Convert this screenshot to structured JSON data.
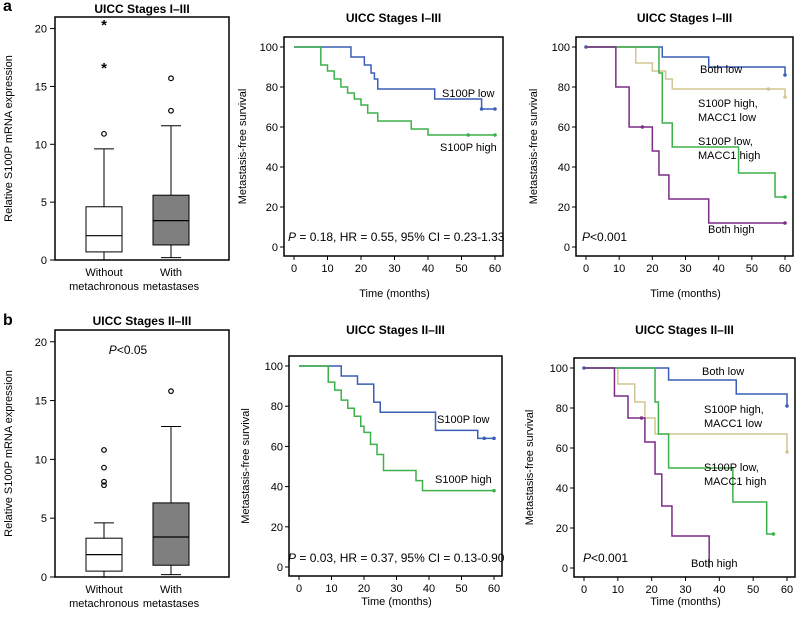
{
  "panel_labels": {
    "a": "a",
    "b": "b"
  },
  "chart_data": [
    {
      "id": "a1",
      "type": "box",
      "title": "UICC Stages I–III",
      "ylabel": "Relative S100P mRNA expression",
      "ylim": [
        0,
        21
      ],
      "yticks": [
        0,
        5,
        10,
        15,
        20
      ],
      "annotation": "",
      "groups": [
        {
          "label": [
            "Without",
            "metachronous"
          ],
          "fill": "#ffffff",
          "min": 0,
          "q1": 0.7,
          "median": 2.1,
          "q3": 4.6,
          "max": 9.6,
          "outliers": [
            {
              "value": 10.9,
              "marker": "circle"
            },
            {
              "value": 16.7,
              "marker": "star"
            },
            {
              "value": 20.4,
              "marker": "star"
            }
          ]
        },
        {
          "label": [
            "With",
            "metastases"
          ],
          "fill": "#7f7f7f",
          "min": 0.2,
          "q1": 1.3,
          "median": 3.4,
          "q3": 5.6,
          "max": 11.6,
          "outliers": [
            {
              "value": 12.9,
              "marker": "circle"
            },
            {
              "value": 15.7,
              "marker": "circle"
            }
          ]
        }
      ]
    },
    {
      "id": "a2",
      "type": "line",
      "title": "UICC Stages I–III",
      "xlabel": "Time (months)",
      "ylabel": "Metastasis-free survival",
      "xlim": [
        0,
        60
      ],
      "ylim": [
        0,
        100
      ],
      "xticks": [
        0,
        10,
        20,
        30,
        40,
        50,
        60
      ],
      "yticks": [
        0,
        20,
        40,
        60,
        80,
        100
      ],
      "stats_text": {
        "p": "P",
        "rest": " = 0.18, HR = 0.55, 95% CI = 0.23-1.33"
      },
      "series": [
        {
          "name": "S100P low",
          "label_lines": [
            "S100P low"
          ],
          "color": "#3a5fb6",
          "x": [
            0,
            6,
            17,
            21,
            23,
            24,
            25,
            40,
            42,
            56,
            60
          ],
          "y": [
            100,
            100,
            95,
            91,
            87,
            84,
            79,
            79,
            74,
            69,
            69
          ],
          "censor_x": [
            56,
            60
          ]
        },
        {
          "name": "S100P high",
          "label_lines": [
            "S100P high"
          ],
          "color": "#3db14a",
          "x": [
            0,
            7,
            8,
            10,
            12,
            14,
            16,
            18,
            20,
            22,
            25,
            35,
            40,
            60
          ],
          "y": [
            100,
            100,
            91,
            88,
            84,
            80,
            77,
            74,
            71,
            67,
            63,
            59,
            56,
            56
          ],
          "censor_x": [
            52,
            60
          ]
        }
      ]
    },
    {
      "id": "a3",
      "type": "line",
      "title": "UICC Stages I–III",
      "xlabel": "Time (months)",
      "ylabel": "Metastasis-free survival",
      "xlim": [
        0,
        60
      ],
      "ylim": [
        0,
        100
      ],
      "xticks": [
        0,
        10,
        20,
        30,
        40,
        50,
        60
      ],
      "yticks": [
        0,
        20,
        40,
        60,
        80,
        100
      ],
      "stats_text": {
        "p": "P",
        "rest": "<0.001"
      },
      "series": [
        {
          "name": "Both low",
          "label_lines": [
            "Both low"
          ],
          "color": "#3a5fb6",
          "x": [
            0,
            13,
            23,
            37,
            60
          ],
          "y": [
            100,
            100,
            95,
            90,
            86
          ],
          "censor_x": [
            0,
            60
          ]
        },
        {
          "name": "S100P high, MACC1 low",
          "label_lines": [
            "S100P high,",
            "MACC1 low"
          ],
          "color": "#d2c592",
          "x": [
            0,
            8,
            15,
            20,
            24,
            26,
            60
          ],
          "y": [
            100,
            100,
            92,
            88,
            84,
            79,
            75
          ],
          "censor_x": [
            55,
            60
          ]
        },
        {
          "name": "S100P low, MACC1 high",
          "label_lines": [
            "S100P low,",
            "MACC1 high"
          ],
          "color": "#3db14a",
          "x": [
            0,
            11,
            22,
            23,
            26,
            46,
            57,
            60
          ],
          "y": [
            100,
            100,
            87,
            62,
            50,
            37,
            25,
            25
          ],
          "censor_x": [
            60
          ]
        },
        {
          "name": "Both high",
          "label_lines": [
            "Both high"
          ],
          "color": "#7b2c87",
          "x": [
            0,
            6,
            9,
            13,
            20,
            22,
            25,
            37,
            60
          ],
          "y": [
            100,
            100,
            80,
            60,
            48,
            36,
            24,
            12,
            12
          ],
          "censor_x": [
            17,
            60
          ]
        }
      ]
    },
    {
      "id": "b1",
      "type": "box",
      "title": "UICC Stages II–III",
      "ylabel": "Relative S100P mRNA expression",
      "ylim": [
        0,
        21
      ],
      "yticks": [
        0,
        5,
        10,
        15,
        20
      ],
      "annotation": {
        "p": "P",
        "rest": "<0.05"
      },
      "groups": [
        {
          "label": [
            "Without",
            "metachronous"
          ],
          "fill": "#ffffff",
          "min": 0,
          "q1": 0.5,
          "median": 1.9,
          "q3": 3.3,
          "max": 4.6,
          "outliers": [
            {
              "value": 7.8,
              "marker": "circle"
            },
            {
              "value": 8.1,
              "marker": "circle"
            },
            {
              "value": 9.3,
              "marker": "circle"
            },
            {
              "value": 10.8,
              "marker": "circle"
            }
          ]
        },
        {
          "label": [
            "With",
            "metastases"
          ],
          "fill": "#7f7f7f",
          "min": 0.2,
          "q1": 1.0,
          "median": 3.4,
          "q3": 6.3,
          "max": 12.8,
          "outliers": [
            {
              "value": 15.8,
              "marker": "circle"
            }
          ]
        }
      ]
    },
    {
      "id": "b2",
      "type": "line",
      "title": "UICC Stages II–III",
      "xlabel": "Time (months)",
      "ylabel": "Metastasis-free survival",
      "xlim": [
        0,
        60
      ],
      "ylim": [
        0,
        100
      ],
      "xticks": [
        0,
        10,
        20,
        30,
        40,
        50,
        60
      ],
      "yticks": [
        0,
        20,
        40,
        60,
        80,
        100
      ],
      "stats_text": {
        "p": "P",
        "rest": " = 0.03, HR = 0.37, 95% CI = 0.13-0.90"
      },
      "series": [
        {
          "name": "S100P low",
          "label_lines": [
            "S100P low"
          ],
          "color": "#3a5fb6",
          "x": [
            0,
            6,
            13,
            18,
            23,
            25,
            42,
            55,
            60
          ],
          "y": [
            100,
            100,
            95,
            91,
            82,
            77,
            68,
            64,
            64
          ],
          "censor_x": [
            57,
            60
          ]
        },
        {
          "name": "S100P high",
          "label_lines": [
            "S100P high"
          ],
          "color": "#3db14a",
          "x": [
            0,
            7,
            9,
            11,
            13,
            15,
            17,
            19,
            20,
            22,
            24,
            26,
            36,
            38,
            60
          ],
          "y": [
            100,
            100,
            92,
            88,
            83,
            79,
            75,
            70,
            67,
            61,
            56,
            48,
            43,
            38,
            38
          ],
          "censor_x": [
            60
          ]
        }
      ]
    },
    {
      "id": "b3",
      "type": "line",
      "title": "UICC Stages II–III",
      "xlabel": "Time (months)",
      "ylabel": "Metastasis-free survival",
      "xlim": [
        0,
        60
      ],
      "ylim": [
        0,
        100
      ],
      "xticks": [
        0,
        10,
        20,
        30,
        40,
        50,
        60
      ],
      "yticks": [
        0,
        20,
        40,
        60,
        80,
        100
      ],
      "stats_text": {
        "p": "P",
        "rest": "<0.001"
      },
      "series": [
        {
          "name": "Both low",
          "label_lines": [
            "Both low"
          ],
          "color": "#3a5fb6",
          "x": [
            0,
            12,
            25,
            45,
            60
          ],
          "y": [
            100,
            100,
            94,
            87,
            81
          ],
          "censor_x": [
            0,
            60
          ]
        },
        {
          "name": "S100P high, MACC1 low",
          "label_lines": [
            "S100P high,",
            "MACC1 low"
          ],
          "color": "#d2c592",
          "x": [
            0,
            8,
            10,
            15,
            18,
            21,
            26,
            60
          ],
          "y": [
            100,
            100,
            92,
            83,
            75,
            67,
            67,
            58
          ],
          "censor_x": [
            60
          ]
        },
        {
          "name": "S100P low, MACC1 high",
          "label_lines": [
            "S100P low,",
            "MACC1 high"
          ],
          "color": "#3db14a",
          "x": [
            0,
            11,
            21,
            22,
            25,
            44,
            54,
            56
          ],
          "y": [
            100,
            100,
            83,
            67,
            50,
            33,
            17,
            17
          ],
          "censor_x": [
            56
          ]
        },
        {
          "name": "Both high",
          "label_lines": [
            "Both high"
          ],
          "color": "#7b2c87",
          "x": [
            0,
            6,
            9,
            13,
            18,
            21,
            23,
            26,
            37,
            37
          ],
          "y": [
            100,
            100,
            86,
            75,
            63,
            47,
            31,
            16,
            16,
            0
          ],
          "censor_x": [
            17
          ]
        }
      ]
    }
  ]
}
